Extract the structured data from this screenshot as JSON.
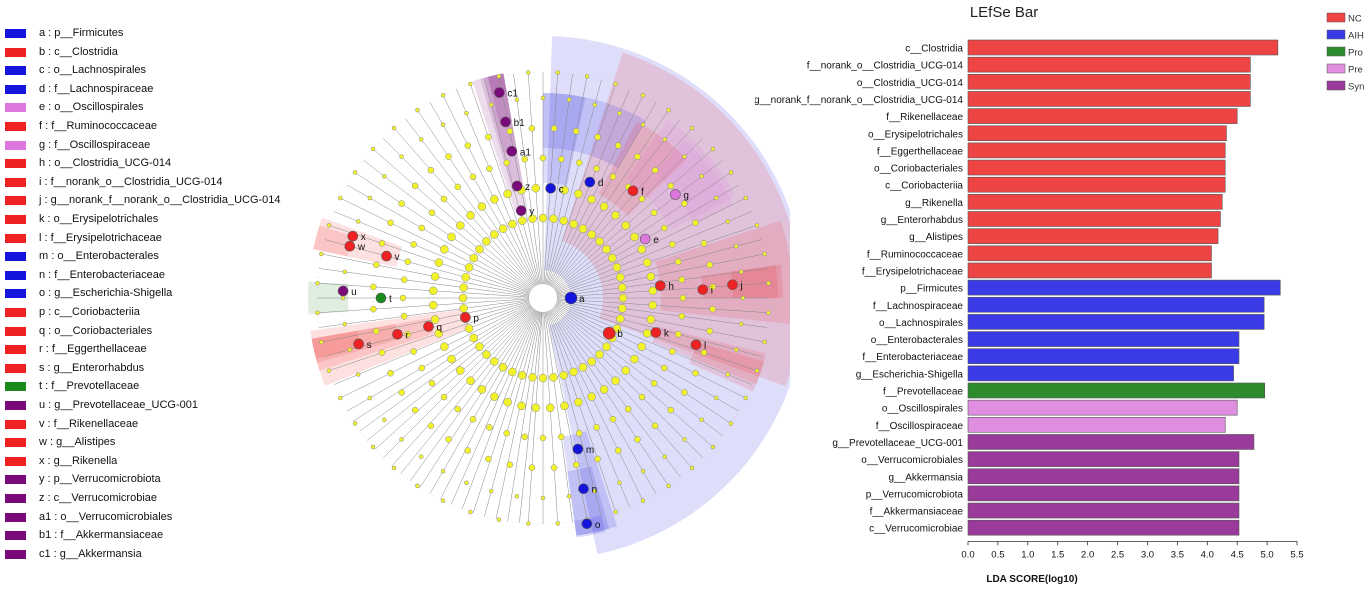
{
  "legend": {
    "items": [
      {
        "key": "a",
        "label": "p__Firmicutes",
        "color": "#1414dc"
      },
      {
        "key": "b",
        "label": "c__Clostridia",
        "color": "#ee2222"
      },
      {
        "key": "c",
        "label": "o__Lachnospirales",
        "color": "#1414dc"
      },
      {
        "key": "d",
        "label": "f__Lachnospiraceae",
        "color": "#1414dc"
      },
      {
        "key": "e",
        "label": "o__Oscillospirales",
        "color": "#dd77dd"
      },
      {
        "key": "f",
        "label": "f__Ruminococcaceae",
        "color": "#ee2222"
      },
      {
        "key": "g",
        "label": "f__Oscillospiraceae",
        "color": "#dd77dd"
      },
      {
        "key": "h",
        "label": "o__Clostridia_UCG-014",
        "color": "#ee2222"
      },
      {
        "key": "i",
        "label": "f__norank_o__Clostridia_UCG-014",
        "color": "#ee2222"
      },
      {
        "key": "j",
        "label": "g__norank_f__norank_o__Clostridia_UCG-014",
        "color": "#ee2222"
      },
      {
        "key": "k",
        "label": "o__Erysipelotrichales",
        "color": "#ee2222"
      },
      {
        "key": "l",
        "label": "f__Erysipelotrichaceae",
        "color": "#ee2222"
      },
      {
        "key": "m",
        "label": "o__Enterobacterales",
        "color": "#1414dc"
      },
      {
        "key": "n",
        "label": "f__Enterobacteriaceae",
        "color": "#1414dc"
      },
      {
        "key": "o",
        "label": "g__Escherichia-Shigella",
        "color": "#1414dc"
      },
      {
        "key": "p",
        "label": "c__Coriobacteriia",
        "color": "#ee2222"
      },
      {
        "key": "q",
        "label": "o__Coriobacteriales",
        "color": "#ee2222"
      },
      {
        "key": "r",
        "label": "f__Eggerthellaceae",
        "color": "#ee2222"
      },
      {
        "key": "s",
        "label": "g__Enterorhabdus",
        "color": "#ee2222"
      },
      {
        "key": "t",
        "label": "f__Prevotellaceae",
        "color": "#1a8a1a"
      },
      {
        "key": "u",
        "label": "g__Prevotellaceae_UCG-001",
        "color": "#7a0a7a"
      },
      {
        "key": "v",
        "label": "f__Rikenellaceae",
        "color": "#ee2222"
      },
      {
        "key": "w",
        "label": "g__Alistipes",
        "color": "#ee2222"
      },
      {
        "key": "x",
        "label": "g__Rikenella",
        "color": "#ee2222"
      },
      {
        "key": "y",
        "label": "p__Verrucomicrobiota",
        "color": "#7a0a7a"
      },
      {
        "key": "z",
        "label": "c__Verrucomicrobiae",
        "color": "#7a0a7a"
      },
      {
        "key": "a1",
        "label": "o__Verrucomicrobiales",
        "color": "#7a0a7a"
      },
      {
        "key": "b1",
        "label": "f__Akkermansiaceae",
        "color": "#7a0a7a"
      },
      {
        "key": "c1",
        "label": "g__Akkermansia",
        "color": "#7a0a7a"
      }
    ]
  },
  "cladogram": {
    "nodes": [
      {
        "key": "a",
        "group": "AIH"
      },
      {
        "key": "b",
        "group": "NC"
      },
      {
        "key": "c",
        "group": "AIH"
      },
      {
        "key": "d",
        "group": "AIH"
      },
      {
        "key": "e",
        "group": "Pre"
      },
      {
        "key": "f",
        "group": "NC"
      },
      {
        "key": "g",
        "group": "Pre"
      },
      {
        "key": "h",
        "group": "NC"
      },
      {
        "key": "i",
        "group": "NC"
      },
      {
        "key": "j",
        "group": "NC"
      },
      {
        "key": "k",
        "group": "NC"
      },
      {
        "key": "l",
        "group": "NC"
      },
      {
        "key": "m",
        "group": "AIH"
      },
      {
        "key": "n",
        "group": "AIH"
      },
      {
        "key": "o",
        "group": "AIH"
      },
      {
        "key": "p",
        "group": "NC"
      },
      {
        "key": "q",
        "group": "NC"
      },
      {
        "key": "r",
        "group": "NC"
      },
      {
        "key": "s",
        "group": "NC"
      },
      {
        "key": "t",
        "group": "Pro"
      },
      {
        "key": "u",
        "group": "Syn"
      },
      {
        "key": "v",
        "group": "NC"
      },
      {
        "key": "w",
        "group": "NC"
      },
      {
        "key": "x",
        "group": "NC"
      },
      {
        "key": "y",
        "group": "Syn"
      },
      {
        "key": "z",
        "group": "Syn"
      },
      {
        "key": "a1",
        "group": "Syn"
      },
      {
        "key": "b1",
        "group": "Syn"
      },
      {
        "key": "c1",
        "group": "Syn"
      }
    ],
    "colors": {
      "NC": "#ee2222",
      "AIH": "#1414dc",
      "Pro": "#1a8a1a",
      "Pre": "#dd77dd",
      "Syn": "#7a0a7a",
      "node": "#f2f22a"
    }
  },
  "chart_data": {
    "type": "bar",
    "orientation": "horizontal",
    "title": "LEfSe Bar",
    "xlabel": "LDA SCORE(log10)",
    "xlim": [
      0,
      5.6
    ],
    "xticks": [
      "0.0",
      "0.5",
      "1.0",
      "1.5",
      "2.0",
      "2.5",
      "3.0",
      "3.5",
      "4.0",
      "4.5",
      "5.0",
      "5.5"
    ],
    "legend": {
      "position": "top-right",
      "entries": [
        {
          "name": "NC",
          "color": "#ee4444"
        },
        {
          "name": "AIH",
          "color": "#3a3ae6"
        },
        {
          "name": "Pro",
          "color": "#2e8b2e"
        },
        {
          "name": "Pre",
          "color": "#e08ee0"
        },
        {
          "name": "Syn",
          "color": "#9a3a9a"
        }
      ]
    },
    "bars": [
      {
        "label": "c__Clostridia",
        "value": 5.18,
        "group": "NC"
      },
      {
        "label": "f__norank_o__Clostridia_UCG-014",
        "value": 4.72,
        "group": "NC"
      },
      {
        "label": "o__Clostridia_UCG-014",
        "value": 4.72,
        "group": "NC"
      },
      {
        "label": "g__norank_f__norank_o__Clostridia_UCG-014",
        "value": 4.72,
        "group": "NC"
      },
      {
        "label": "f__Rikenellaceae",
        "value": 4.5,
        "group": "NC"
      },
      {
        "label": "o__Erysipelotrichales",
        "value": 4.32,
        "group": "NC"
      },
      {
        "label": "f__Eggerthellaceae",
        "value": 4.3,
        "group": "NC"
      },
      {
        "label": "o__Coriobacteriales",
        "value": 4.3,
        "group": "NC"
      },
      {
        "label": "c__Coriobacteriia",
        "value": 4.3,
        "group": "NC"
      },
      {
        "label": "g__Rikenella",
        "value": 4.25,
        "group": "NC"
      },
      {
        "label": "g__Enterorhabdus",
        "value": 4.22,
        "group": "NC"
      },
      {
        "label": "g__Alistipes",
        "value": 4.18,
        "group": "NC"
      },
      {
        "label": "f__Ruminococcaceae",
        "value": 4.07,
        "group": "NC"
      },
      {
        "label": "f__Erysipelotrichaceae",
        "value": 4.07,
        "group": "NC"
      },
      {
        "label": "p__Firmicutes",
        "value": 5.22,
        "group": "AIH"
      },
      {
        "label": "f__Lachnospiraceae",
        "value": 4.95,
        "group": "AIH"
      },
      {
        "label": "o__Lachnospirales",
        "value": 4.95,
        "group": "AIH"
      },
      {
        "label": "o__Enterobacterales",
        "value": 4.53,
        "group": "AIH"
      },
      {
        "label": "f__Enterobacteriaceae",
        "value": 4.53,
        "group": "AIH"
      },
      {
        "label": "g__Escherichia-Shigella",
        "value": 4.44,
        "group": "AIH"
      },
      {
        "label": "f__Prevotellaceae",
        "value": 4.96,
        "group": "Pro"
      },
      {
        "label": "o__Oscillospirales",
        "value": 4.5,
        "group": "Pre"
      },
      {
        "label": "f__Oscillospiraceae",
        "value": 4.3,
        "group": "Pre"
      },
      {
        "label": "g__Prevotellaceae_UCG-001",
        "value": 4.78,
        "group": "Syn"
      },
      {
        "label": "o__Verrucomicrobiales",
        "value": 4.53,
        "group": "Syn"
      },
      {
        "label": "g__Akkermansia",
        "value": 4.53,
        "group": "Syn"
      },
      {
        "label": "p__Verrucomicrobiota",
        "value": 4.53,
        "group": "Syn"
      },
      {
        "label": "f__Akkermansiaceae",
        "value": 4.53,
        "group": "Syn"
      },
      {
        "label": "c__Verrucomicrobiae",
        "value": 4.53,
        "group": "Syn"
      }
    ]
  }
}
